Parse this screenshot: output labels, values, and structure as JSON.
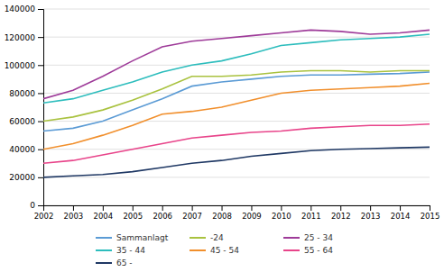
{
  "chart_data": {
    "type": "line",
    "x": [
      2002,
      2003,
      2004,
      2005,
      2006,
      2007,
      2008,
      2009,
      2010,
      2011,
      2012,
      2013,
      2014,
      2015
    ],
    "series": [
      {
        "name": "Sammanlagt",
        "color": "#5b9bd5",
        "values": [
          53000,
          55000,
          60000,
          68000,
          76000,
          85000,
          88000,
          90000,
          92000,
          93000,
          93000,
          93500,
          94000,
          95000
        ]
      },
      {
        "name": "-24",
        "color": "#a9c23f",
        "values": [
          60000,
          63000,
          68000,
          75000,
          83000,
          92000,
          92000,
          93000,
          95000,
          96000,
          96000,
          95000,
          96000,
          96000
        ]
      },
      {
        "name": "25 - 34",
        "color": "#9e3b99",
        "values": [
          76000,
          82000,
          92000,
          103000,
          113000,
          117000,
          119000,
          121000,
          123000,
          125000,
          124000,
          122000,
          123000,
          125000
        ]
      },
      {
        "name": "35 - 44",
        "color": "#2dbdbd",
        "values": [
          73000,
          76000,
          82000,
          88000,
          95000,
          100000,
          103000,
          108000,
          114000,
          116000,
          118000,
          119000,
          120000,
          122000
        ]
      },
      {
        "name": "45 - 54",
        "color": "#f18f2c",
        "values": [
          40000,
          44000,
          50000,
          57000,
          65000,
          67000,
          70000,
          75000,
          80000,
          82000,
          83000,
          84000,
          85000,
          87000
        ]
      },
      {
        "name": "55 - 64",
        "color": "#e8448a",
        "values": [
          30000,
          32000,
          36000,
          40000,
          44000,
          48000,
          50000,
          52000,
          53000,
          55000,
          56000,
          57000,
          57000,
          58000
        ]
      },
      {
        "name": "65 -",
        "color": "#1f3864",
        "values": [
          20000,
          21000,
          22000,
          24000,
          27000,
          30000,
          32000,
          35000,
          37000,
          39000,
          40000,
          40500,
          41000,
          41500
        ]
      }
    ],
    "xlim": [
      2002,
      2015
    ],
    "xticks": [
      2002,
      2003,
      2004,
      2005,
      2006,
      2007,
      2008,
      2009,
      2010,
      2011,
      2012,
      2013,
      2014,
      2015
    ],
    "ylim": [
      0,
      140000
    ],
    "yticks": [
      0,
      20000,
      40000,
      60000,
      80000,
      100000,
      120000,
      140000
    ],
    "grid": true,
    "legend": "bottom"
  }
}
